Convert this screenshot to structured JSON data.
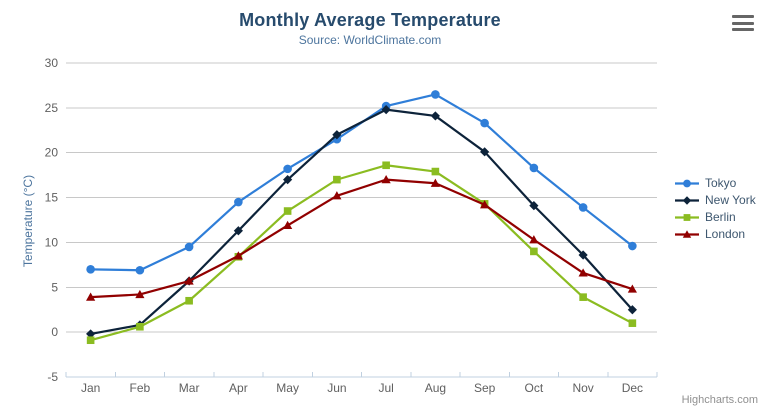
{
  "chart_data": {
    "type": "line",
    "title": "Monthly Average Temperature",
    "subtitle": "Source: WorldClimate.com",
    "xlabel": "",
    "ylabel": "Temperature (°C)",
    "categories": [
      "Jan",
      "Feb",
      "Mar",
      "Apr",
      "May",
      "Jun",
      "Jul",
      "Aug",
      "Sep",
      "Oct",
      "Nov",
      "Dec"
    ],
    "ylim": [
      -5,
      30
    ],
    "yticks": [
      -5,
      0,
      5,
      10,
      15,
      20,
      25,
      30
    ],
    "grid": true,
    "legend_position": "right",
    "series": [
      {
        "name": "Tokyo",
        "color": "#2f7ed8",
        "marker": "circle",
        "values": [
          7.0,
          6.9,
          9.5,
          14.5,
          18.2,
          21.5,
          25.2,
          26.5,
          23.3,
          18.3,
          13.9,
          9.6
        ]
      },
      {
        "name": "New York",
        "color": "#0d233a",
        "marker": "diamond",
        "values": [
          -0.2,
          0.8,
          5.7,
          11.3,
          17.0,
          22.0,
          24.8,
          24.1,
          20.1,
          14.1,
          8.6,
          2.5
        ]
      },
      {
        "name": "Berlin",
        "color": "#8bbc21",
        "marker": "square",
        "values": [
          -0.9,
          0.6,
          3.5,
          8.4,
          13.5,
          17.0,
          18.6,
          17.9,
          14.3,
          9.0,
          3.9,
          1.0
        ]
      },
      {
        "name": "London",
        "color": "#910000",
        "marker": "triangle",
        "values": [
          3.9,
          4.2,
          5.7,
          8.5,
          11.9,
          15.2,
          17.0,
          16.6,
          14.2,
          10.3,
          6.6,
          4.8
        ]
      }
    ]
  },
  "colors": {
    "title": "#274b6d",
    "subtitle": "#4d759e",
    "axis_title": "#4d759e",
    "axis_label": "#606060",
    "gridline": "#c8c8c8",
    "axis_line": "#c0d0e0",
    "legend_text": "#3e576f",
    "credits": "#909090",
    "menu_icon": "#666666",
    "background": "#ffffff"
  },
  "credits": {
    "label": "Highcharts.com"
  },
  "export_menu": {
    "icon": "hamburger-icon"
  }
}
